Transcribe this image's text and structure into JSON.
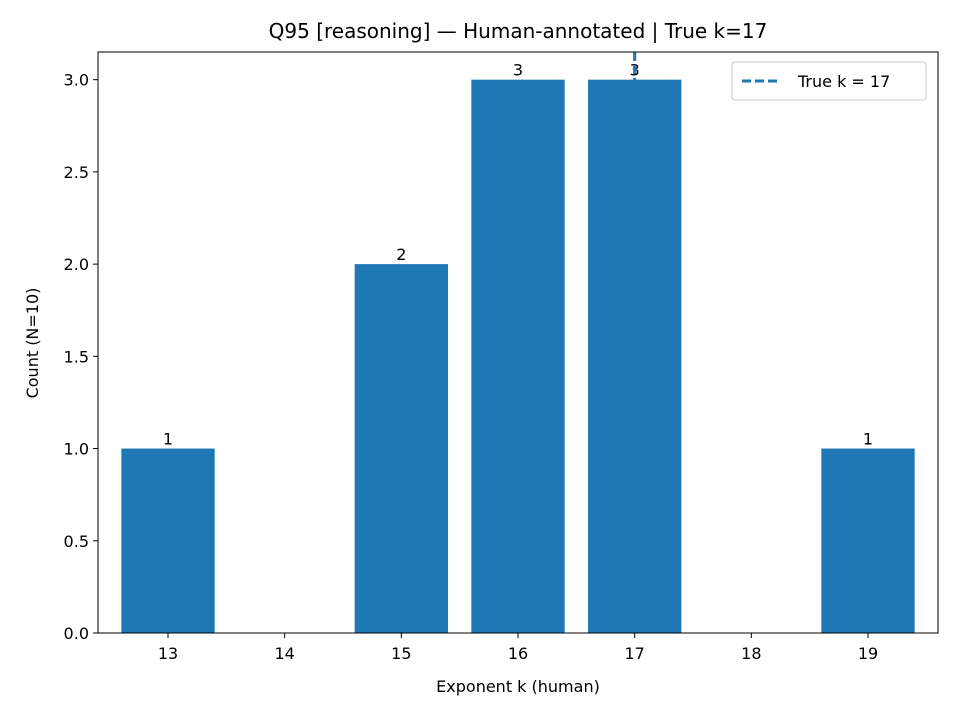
{
  "chart_data": {
    "type": "bar",
    "title": "Q95 [reasoning] — Human-annotated | True k=17",
    "xlabel": "Exponent k (human)",
    "ylabel": "Count (N=10)",
    "categories": [
      13,
      14,
      15,
      16,
      17,
      18,
      19
    ],
    "values": [
      1,
      0,
      2,
      3,
      3,
      0,
      1
    ],
    "xticks": [
      "13",
      "14",
      "15",
      "16",
      "17",
      "18",
      "19"
    ],
    "yticks": [
      "0.0",
      "0.5",
      "1.0",
      "1.5",
      "2.0",
      "2.5",
      "3.0"
    ],
    "ylim": [
      0,
      3.15
    ],
    "xlim": [
      12.4,
      19.6
    ],
    "reference_line": {
      "x": 17,
      "style": "dashed",
      "label": "True k = 17"
    },
    "legend": {
      "position": "top-right",
      "entries": [
        "True k = 17"
      ]
    },
    "grid": false,
    "colors": {
      "bar": "#1f77b4",
      "reference_line": "#1f77b4"
    }
  }
}
